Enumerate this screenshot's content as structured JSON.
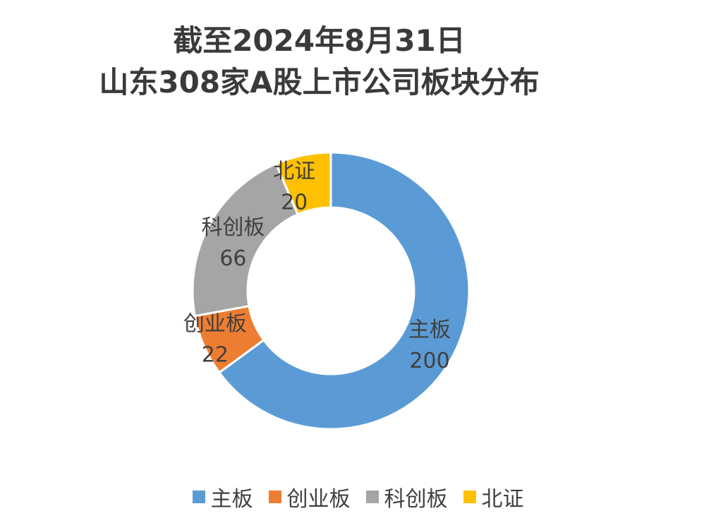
{
  "chart_data": {
    "type": "pie",
    "title_line1": "截至2024年8月31日",
    "title_line2": "山东308家A股上市公司板块分布",
    "slices": [
      {
        "label": "主板",
        "value": 200,
        "color": "#5b9bd5"
      },
      {
        "label": "创业板",
        "value": 22,
        "color": "#ed7d31"
      },
      {
        "label": "科创板",
        "value": 66,
        "color": "#a5a5a5"
      },
      {
        "label": "北证",
        "value": 20,
        "color": "#ffc000"
      }
    ],
    "legend_position": "bottom"
  }
}
